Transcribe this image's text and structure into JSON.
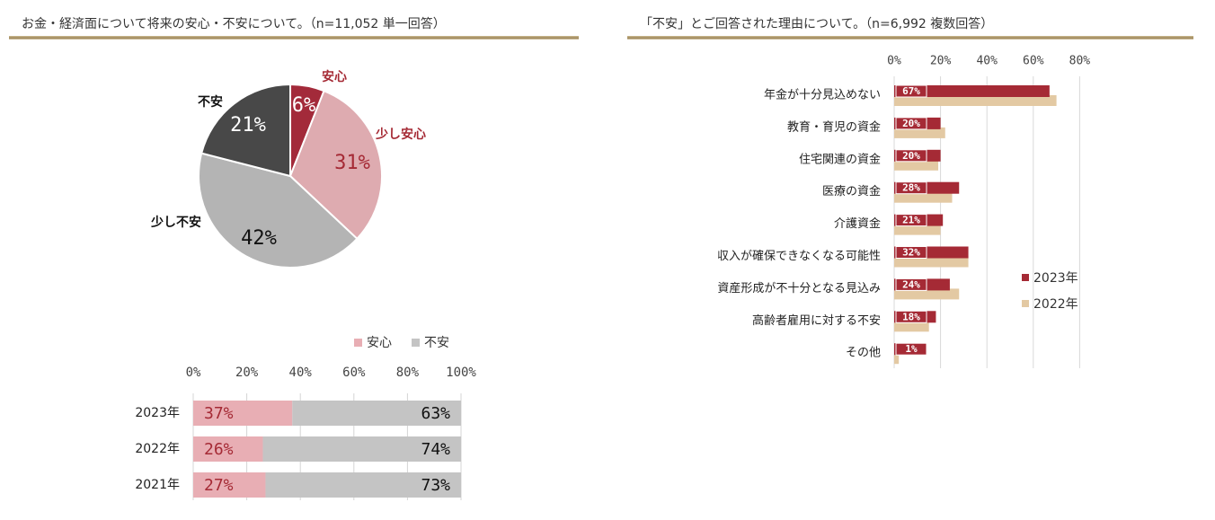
{
  "left": {
    "title": "お金・経済面について将来の安心・不安について。（n=11,052 単一回答）"
  },
  "right": {
    "title": "「不安」とご回答された理由について。（n=6,992 複数回答）"
  },
  "colors": {
    "anshin": "#a32a3a",
    "sukoshi_anshin": "#deabb0",
    "sukoshi_fuan": "#b4b4b4",
    "fuan": "#484848",
    "y2023": "#a52a35",
    "y2022": "#e3c9a3",
    "stack_anshin": "#e8aeb4",
    "stack_fuan": "#c4c4c4",
    "rule": "#a38c5c"
  },
  "chart_data": [
    {
      "type": "pie",
      "slices": [
        {
          "label": "安心",
          "value": 6,
          "value_label": "6%"
        },
        {
          "label": "少し安心",
          "value": 31,
          "value_label": "31%"
        },
        {
          "label": "少し不安",
          "value": 42,
          "value_label": "42%"
        },
        {
          "label": "不安",
          "value": 21,
          "value_label": "21%"
        }
      ]
    },
    {
      "type": "bar",
      "orientation": "horizontal",
      "stacked": true,
      "categories": [
        "2023年",
        "2022年",
        "2021年"
      ],
      "series": [
        {
          "name": "安心",
          "values": [
            37,
            26,
            27
          ],
          "labels": [
            "37%",
            "26%",
            "27%"
          ]
        },
        {
          "name": "不安",
          "values": [
            63,
            74,
            73
          ],
          "labels": [
            "63%",
            "74%",
            "73%"
          ]
        }
      ],
      "xlim": [
        0,
        100
      ],
      "xticks": [
        "0%",
        "20%",
        "40%",
        "60%",
        "80%",
        "100%"
      ],
      "grid": true,
      "legend": "top-right"
    },
    {
      "type": "bar",
      "orientation": "horizontal",
      "categories": [
        "年金が十分見込めない",
        "教育・育児の資金",
        "住宅関連の資金",
        "医療の資金",
        "介護資金",
        "収入が確保できなくなる可能性",
        "資産形成が不十分となる見込み",
        "高齢者雇用に対する不安",
        "その他"
      ],
      "series": [
        {
          "name": "2023年",
          "values": [
            67,
            20,
            20,
            28,
            21,
            32,
            24,
            18,
            1
          ],
          "labels": [
            "67%",
            "20%",
            "20%",
            "28%",
            "21%",
            "32%",
            "24%",
            "18%",
            "1%"
          ]
        },
        {
          "name": "2022年",
          "values": [
            70,
            22,
            19,
            25,
            20,
            32,
            28,
            15,
            2
          ]
        }
      ],
      "xlim": [
        0,
        80
      ],
      "xticks": [
        "0%",
        "20%",
        "40%",
        "60%",
        "80%"
      ],
      "grid": true,
      "legend": "right"
    }
  ]
}
